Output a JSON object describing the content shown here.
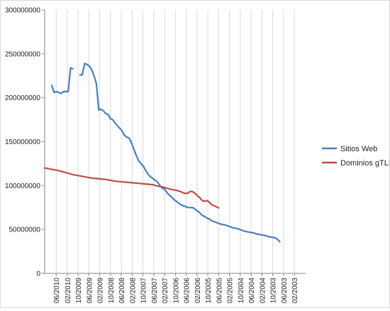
{
  "chart_data": {
    "type": "line",
    "title": "",
    "xlabel": "",
    "ylabel": "",
    "ylim": [
      0,
      300000000
    ],
    "y_ticks": [
      "0",
      "50000000",
      "100000000",
      "150000000",
      "200000000",
      "250000000",
      "300000000"
    ],
    "x_ticks": [
      {
        "label": "06/2010",
        "i": 1.9
      },
      {
        "label": "02/2010",
        "i": 6.6
      },
      {
        "label": "10/2009",
        "i": 11.2
      },
      {
        "label": "06/2009",
        "i": 15.8
      },
      {
        "label": "02/2009",
        "i": 20.4
      },
      {
        "label": "10/2008",
        "i": 25.0
      },
      {
        "label": "06/2008",
        "i": 29.6
      },
      {
        "label": "02/2008",
        "i": 34.2
      },
      {
        "label": "10/2007",
        "i": 38.8
      },
      {
        "label": "06/2007",
        "i": 43.4
      },
      {
        "label": "02/2007",
        "i": 48.0
      },
      {
        "label": "10/2006",
        "i": 52.6
      },
      {
        "label": "06/2006",
        "i": 57.2
      },
      {
        "label": "02/2006",
        "i": 61.8
      },
      {
        "label": "10/2005",
        "i": 66.4
      },
      {
        "label": "06/2005",
        "i": 71.0
      },
      {
        "label": "02/2005",
        "i": 75.6
      },
      {
        "label": "10/2004",
        "i": 80.2
      },
      {
        "label": "06/2004",
        "i": 84.8
      },
      {
        "label": "02/2004",
        "i": 89.4
      },
      {
        "label": "10/2003",
        "i": 94.0
      },
      {
        "label": "06/2003",
        "i": 98.6
      },
      {
        "label": "02/2003",
        "i": 103.2
      }
    ],
    "grid": "vertical",
    "legend_position": "right",
    "series": [
      {
        "name": "Sitios Web",
        "color": "#4a7ebb",
        "points": [
          [
            0,
            214000000
          ],
          [
            1,
            206000000
          ],
          [
            2,
            207000000
          ],
          [
            3,
            206000000
          ],
          [
            4,
            205000000
          ],
          [
            5,
            207000000
          ],
          [
            6,
            207000000
          ],
          [
            7,
            207000000
          ],
          [
            8,
            234000000
          ],
          [
            9,
            233000000
          ],
          [
            10,
            null
          ],
          [
            11,
            null
          ],
          [
            12,
            226000000
          ],
          [
            13,
            226000000
          ],
          [
            14,
            239000000
          ],
          [
            15,
            238000000
          ],
          [
            16,
            236000000
          ],
          [
            17,
            232000000
          ],
          [
            18,
            225000000
          ],
          [
            19,
            216000000
          ],
          [
            20,
            186000000
          ],
          [
            21,
            187000000
          ],
          [
            22,
            185000000
          ],
          [
            23,
            182000000
          ],
          [
            24,
            181000000
          ],
          [
            25,
            176000000
          ],
          [
            26,
            175000000
          ],
          [
            27,
            171000000
          ],
          [
            28,
            168000000
          ],
          [
            29,
            165000000
          ],
          [
            30,
            162000000
          ],
          [
            31,
            157000000
          ],
          [
            32,
            155000000
          ],
          [
            33,
            154000000
          ],
          [
            34,
            148000000
          ],
          [
            35,
            141000000
          ],
          [
            36,
            134000000
          ],
          [
            37,
            128000000
          ],
          [
            38,
            125000000
          ],
          [
            39,
            122000000
          ],
          [
            40,
            117000000
          ],
          [
            41,
            113000000
          ],
          [
            42,
            110000000
          ],
          [
            43,
            108000000
          ],
          [
            44,
            106000000
          ],
          [
            45,
            104000000
          ],
          [
            46,
            100000000
          ],
          [
            47,
            97000000
          ],
          [
            48,
            96000000
          ],
          [
            49,
            92000000
          ],
          [
            50,
            89000000
          ],
          [
            51,
            87000000
          ],
          [
            52,
            84000000
          ],
          [
            53,
            82000000
          ],
          [
            54,
            80000000
          ],
          [
            55,
            78000000
          ],
          [
            56,
            77000000
          ],
          [
            57,
            76000000
          ],
          [
            58,
            75000000
          ],
          [
            59,
            75000000
          ],
          [
            60,
            75000000
          ],
          [
            61,
            73000000
          ],
          [
            62,
            71000000
          ],
          [
            63,
            69000000
          ],
          [
            64,
            66000000
          ],
          [
            65,
            65000000
          ],
          [
            66,
            63000000
          ],
          [
            67,
            62000000
          ],
          [
            68,
            60000000
          ],
          [
            69,
            59000000
          ],
          [
            70,
            58000000
          ],
          [
            71,
            57000000
          ],
          [
            72,
            56000000
          ],
          [
            73,
            55500000
          ],
          [
            74,
            55000000
          ],
          [
            75,
            54000000
          ],
          [
            76,
            53000000
          ],
          [
            77,
            52000000
          ],
          [
            78,
            51500000
          ],
          [
            79,
            51000000
          ],
          [
            80,
            50000000
          ],
          [
            81,
            49000000
          ],
          [
            82,
            48000000
          ],
          [
            83,
            47500000
          ],
          [
            84,
            47000000
          ],
          [
            85,
            46500000
          ],
          [
            86,
            46000000
          ],
          [
            87,
            45000000
          ],
          [
            88,
            44500000
          ],
          [
            89,
            44000000
          ],
          [
            90,
            43500000
          ],
          [
            91,
            43000000
          ],
          [
            92,
            42000000
          ],
          [
            93,
            41500000
          ],
          [
            94,
            41000000
          ],
          [
            95,
            40500000
          ],
          [
            96,
            39000000
          ],
          [
            97,
            36000000
          ]
        ]
      },
      {
        "name": "Dominios gTLD",
        "color": "#be4b48",
        "points": [
          [
            -3,
            120000000
          ],
          [
            -1,
            119000000
          ],
          [
            1,
            118000000
          ],
          [
            3,
            117000000
          ],
          [
            5,
            115500000
          ],
          [
            7,
            114000000
          ],
          [
            9,
            112500000
          ],
          [
            11,
            111500000
          ],
          [
            13,
            110500000
          ],
          [
            15,
            109500000
          ],
          [
            17,
            108500000
          ],
          [
            19,
            108000000
          ],
          [
            21,
            107500000
          ],
          [
            23,
            107000000
          ],
          [
            25,
            106000000
          ],
          [
            27,
            105000000
          ],
          [
            29,
            104500000
          ],
          [
            31,
            104000000
          ],
          [
            33,
            103500000
          ],
          [
            35,
            103000000
          ],
          [
            37,
            102500000
          ],
          [
            39,
            102000000
          ],
          [
            41,
            101500000
          ],
          [
            43,
            101000000
          ],
          [
            45,
            99500000
          ],
          [
            47,
            98500000
          ],
          [
            49,
            97000000
          ],
          [
            51,
            95500000
          ],
          [
            53,
            94500000
          ],
          [
            55,
            93000000
          ],
          [
            56,
            91500000
          ],
          [
            57,
            91000000
          ],
          [
            58,
            91500000
          ],
          [
            59,
            93500000
          ],
          [
            60,
            93000000
          ],
          [
            61,
            91000000
          ],
          [
            62,
            88500000
          ],
          [
            63,
            86000000
          ],
          [
            64,
            83000000
          ],
          [
            65,
            82000000
          ],
          [
            66,
            83000000
          ],
          [
            67,
            81000000
          ],
          [
            68,
            78500000
          ],
          [
            69,
            77000000
          ],
          [
            70,
            76000000
          ],
          [
            71,
            74500000
          ]
        ]
      }
    ]
  }
}
